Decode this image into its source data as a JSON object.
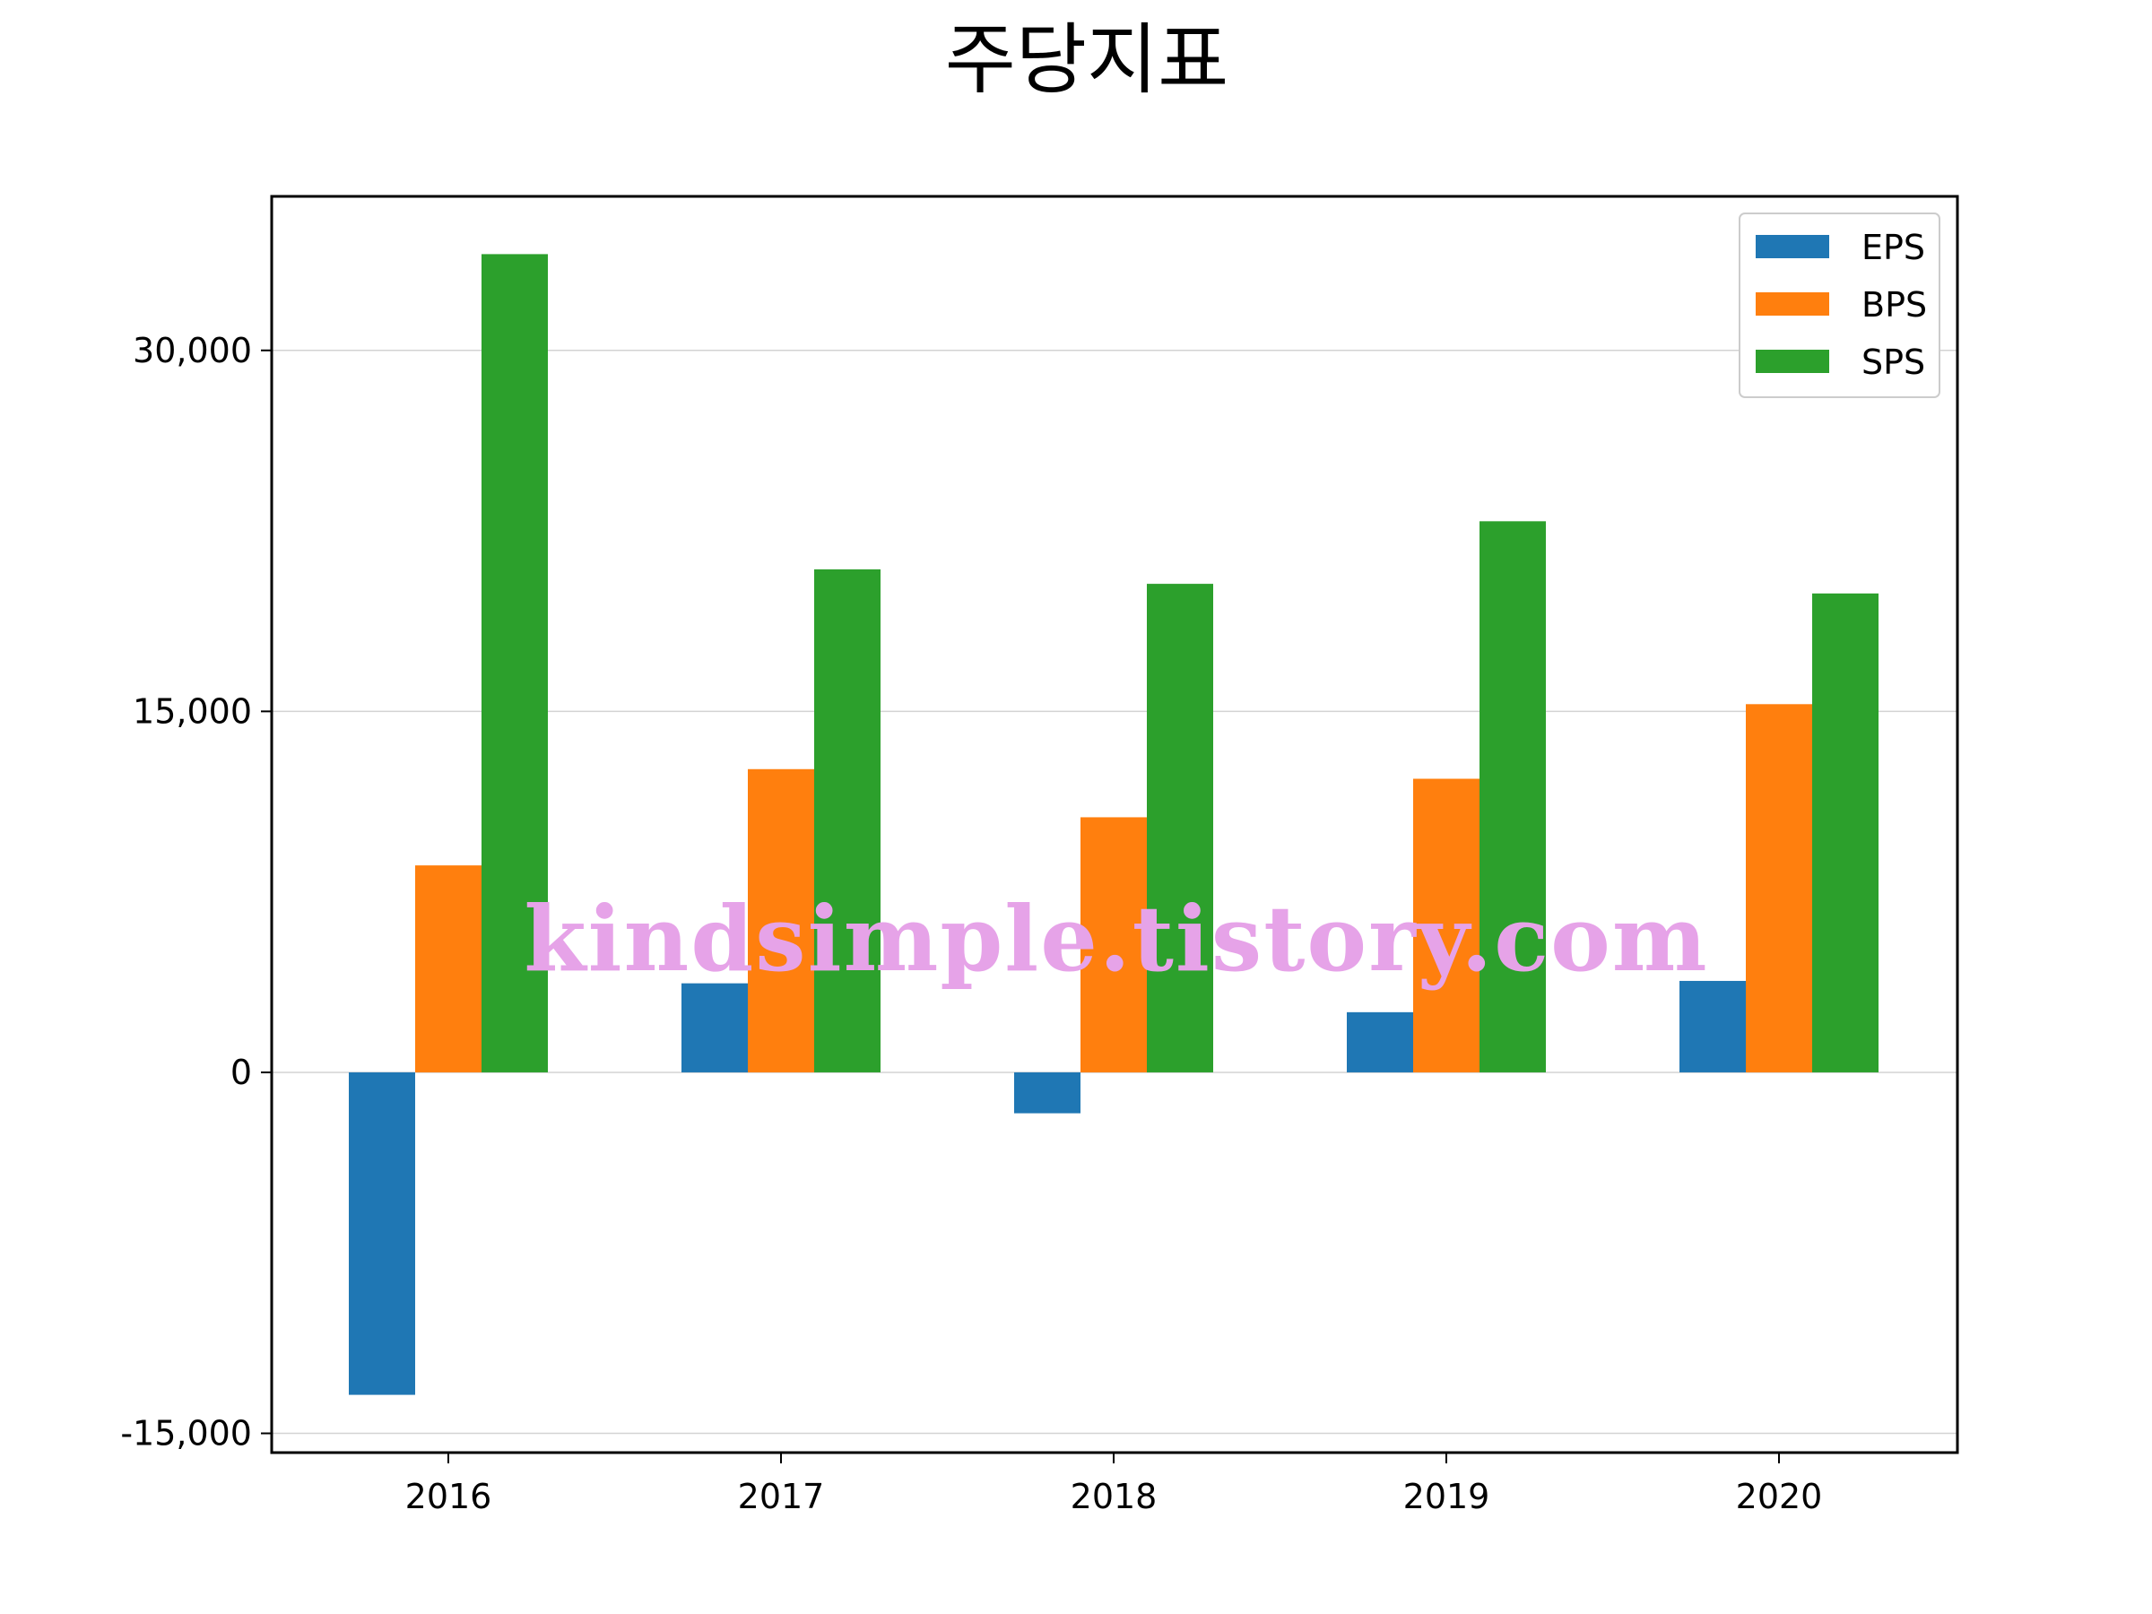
{
  "chart_data": {
    "type": "bar",
    "title": "주당지표",
    "xlabel": "",
    "ylabel": "",
    "categories": [
      "2016",
      "2017",
      "2018",
      "2019",
      "2020"
    ],
    "series": [
      {
        "name": "EPS",
        "color": "#1f77b4",
        "values": [
          -13400,
          3700,
          -1700,
          2500,
          3800
        ]
      },
      {
        "name": "BPS",
        "color": "#ff7f0e",
        "values": [
          8600,
          12600,
          10600,
          12200,
          15300
        ]
      },
      {
        "name": "SPS",
        "color": "#2ca02c",
        "values": [
          34000,
          20900,
          20300,
          22900,
          19900
        ]
      }
    ],
    "ylim": [
      -15800,
      36400
    ],
    "yticks": [
      -15000,
      0,
      15000,
      30000
    ],
    "ytick_labels": [
      "-15,000",
      "0",
      "15,000",
      "30,000"
    ],
    "grid": "horizontal",
    "legend_position": "top-right",
    "watermark": "kindsimple.tistory.com"
  }
}
